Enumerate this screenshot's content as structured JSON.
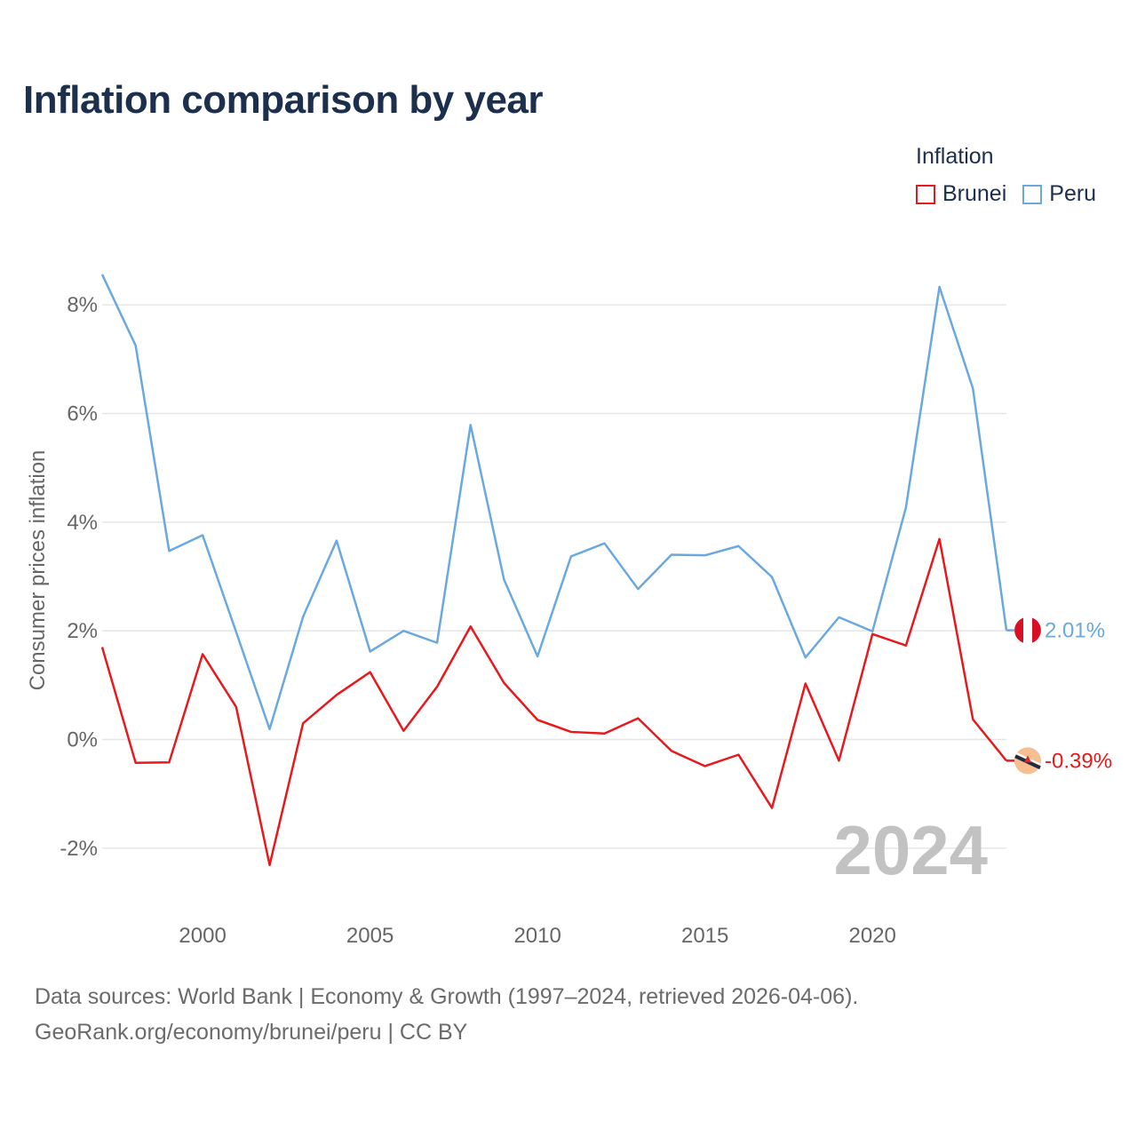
{
  "title": "Inflation comparison by year",
  "legend": {
    "title": "Inflation",
    "items": [
      {
        "label": "Brunei",
        "color": "#e8191c"
      },
      {
        "label": "Peru",
        "color": "#6aa8e0"
      }
    ]
  },
  "footer": {
    "line1": "Data sources: World Bank | Economy & Growth (1997–2024, retrieved 2026-04-06).",
    "line2": "GeoRank.org/economy/brunei/peru | CC BY"
  },
  "chart_data": {
    "type": "line",
    "title": "Inflation comparison by year",
    "xlabel": "",
    "ylabel": "Consumer prices inflation",
    "x": [
      1997,
      1998,
      1999,
      2000,
      2001,
      2002,
      2003,
      2004,
      2005,
      2006,
      2007,
      2008,
      2009,
      2010,
      2011,
      2012,
      2013,
      2014,
      2015,
      2016,
      2017,
      2018,
      2019,
      2020,
      2021,
      2022,
      2023,
      2024
    ],
    "xlim": [
      1997,
      2024
    ],
    "ylim": [
      -3,
      9
    ],
    "x_ticks": [
      2000,
      2005,
      2010,
      2015,
      2020
    ],
    "y_ticks": [
      {
        "value": -2,
        "label": "-2%"
      },
      {
        "value": 0,
        "label": "0%"
      },
      {
        "value": 2,
        "label": "2%"
      },
      {
        "value": 4,
        "label": "4%"
      },
      {
        "value": 6,
        "label": "6%"
      },
      {
        "value": 8,
        "label": "8%"
      }
    ],
    "grid": true,
    "legend_position": "top-right",
    "year_watermark": "2024",
    "series": [
      {
        "name": "Brunei",
        "color": "#e8191c",
        "end_label": "-0.39%",
        "flag": "brunei-flag",
        "values": [
          1.7,
          -0.43,
          -0.42,
          1.57,
          0.6,
          -2.31,
          0.3,
          0.82,
          1.24,
          0.16,
          0.97,
          2.08,
          1.04,
          0.36,
          0.14,
          0.11,
          0.39,
          -0.21,
          -0.49,
          -0.28,
          -1.26,
          1.03,
          -0.39,
          1.94,
          1.73,
          3.69,
          0.37,
          -0.39
        ]
      },
      {
        "name": "Peru",
        "color": "#6aa8e0",
        "end_label": "2.01%",
        "flag": "peru-flag",
        "values": [
          8.56,
          7.25,
          3.47,
          3.76,
          1.98,
          0.19,
          2.26,
          3.66,
          1.62,
          2.0,
          1.78,
          5.79,
          2.94,
          1.53,
          3.37,
          3.61,
          2.77,
          3.4,
          3.39,
          3.56,
          2.99,
          1.51,
          2.25,
          1.99,
          4.27,
          8.33,
          6.46,
          2.01
        ]
      }
    ]
  }
}
